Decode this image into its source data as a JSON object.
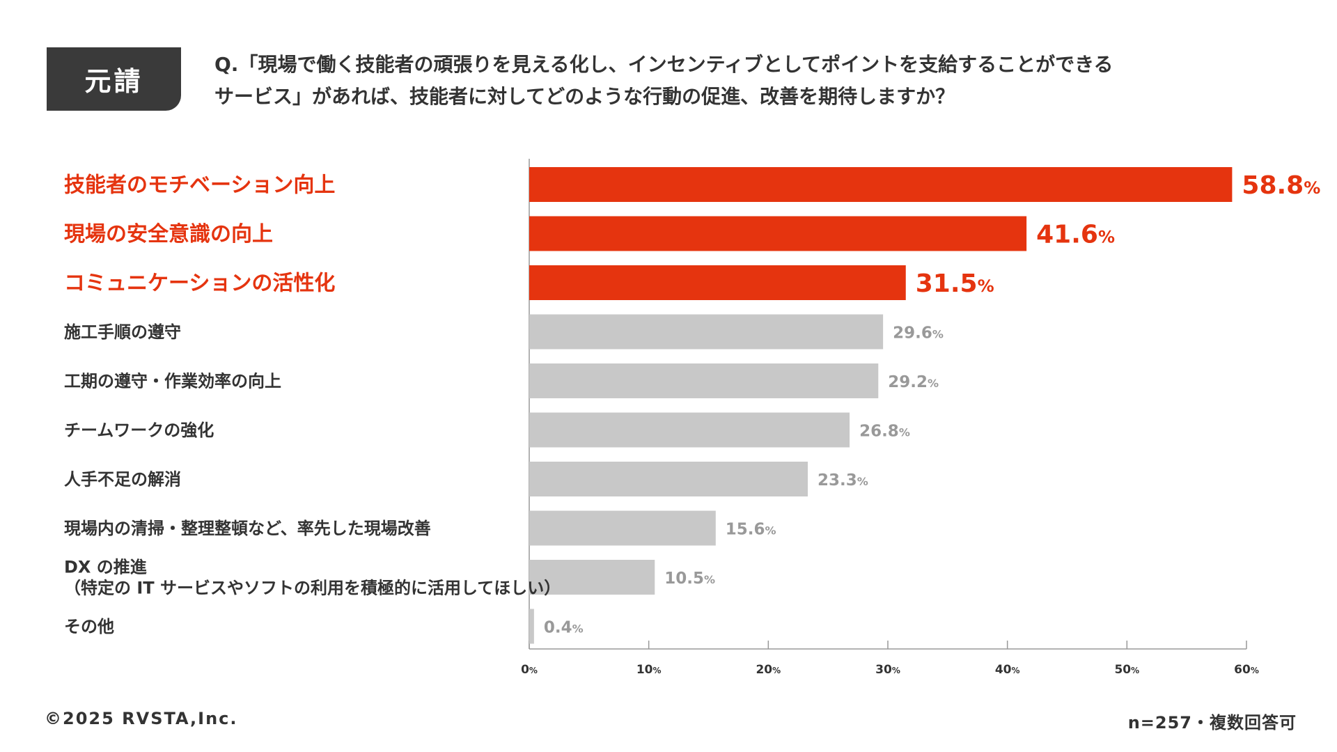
{
  "badge": "元請",
  "question": {
    "line1": "Q.「現場で働く技能者の頑張りを見える化し、インセンティブとしてポイントを支給することができる",
    "line2": "サービス」があれば、技能者に対してどのような行動の促進、改善を期待しますか？"
  },
  "colors": {
    "highlight": "#e5340f",
    "normal": "#c8c8c8",
    "label_normal": "#333333",
    "value_normal": "#999999"
  },
  "chart_data": {
    "type": "bar",
    "orientation": "horizontal",
    "categories": [
      [
        "技能者のモチベーション向上"
      ],
      [
        "現場の安全意識の向上"
      ],
      [
        "コミュニケーションの活性化"
      ],
      [
        "施工手順の遵守"
      ],
      [
        "工期の遵守・作業効率の向上"
      ],
      [
        "チームワークの強化"
      ],
      [
        "人手不足の解消"
      ],
      [
        "現場内の清掃・整理整頓など、率先した現場改善"
      ],
      [
        "DX の推進",
        "（特定の IT サービスやソフトの利用を積極的に活用してほしい）"
      ],
      [
        "その他"
      ]
    ],
    "values": [
      58.8,
      41.6,
      31.5,
      29.6,
      29.2,
      26.8,
      23.3,
      15.6,
      10.5,
      0.4
    ],
    "value_labels": [
      "58.8",
      "41.6",
      "31.5",
      "29.6",
      "29.2",
      "26.8",
      "23.3",
      "15.6",
      "10.5",
      "0.4"
    ],
    "value_unit": "%",
    "highlighted": [
      true,
      true,
      true,
      false,
      false,
      false,
      false,
      false,
      false,
      false
    ],
    "xlim": [
      0,
      60
    ],
    "xticks": [
      0,
      10,
      20,
      30,
      40,
      50,
      60
    ],
    "xtick_labels": [
      "0",
      "10",
      "20",
      "30",
      "40",
      "50",
      "60"
    ],
    "xtick_unit": "%",
    "grid": false,
    "legend": "none"
  },
  "footer": {
    "copyright": "©2025 RVSTA,Inc.",
    "note": "n=257・複数回答可"
  }
}
